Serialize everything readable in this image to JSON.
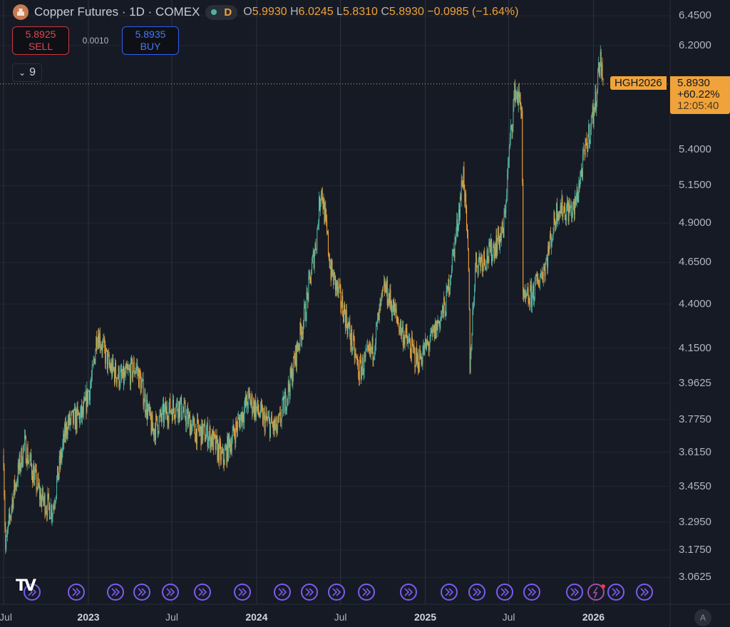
{
  "header": {
    "title": "Copper Futures · 1D · COMEX",
    "interval_badge": "D",
    "ohlc": {
      "o_label": "O",
      "o": "5.9930",
      "h_label": "H",
      "h": "6.0245",
      "l_label": "L",
      "l": "5.8310",
      "c_label": "C",
      "c": "5.8930",
      "change": "−0.0985 (−1.64%)"
    }
  },
  "trade": {
    "sell_price": "5.8925",
    "sell_label": "SELL",
    "spread": "0.0010",
    "buy_price": "5.8935",
    "buy_label": "BUY"
  },
  "indicators_toggle": {
    "icon": "chevron-down-icon",
    "count": "9"
  },
  "price_tag": {
    "symbol": "HGH2026",
    "price": "5.8930",
    "change_pct": "+60.22%",
    "countdown": "12:05:40"
  },
  "auto_scale_label": "A",
  "colors": {
    "up": "#4fb3a0",
    "down": "#f0a33a",
    "background": "#161a25",
    "grid": "#232733",
    "last_price": "#f0a33a",
    "event": "#7b5cf0"
  },
  "chart_data": {
    "type": "candlestick",
    "scale": "log",
    "grid": true,
    "ylim": [
      3.0,
      6.45
    ],
    "y_ticks": [
      "6.4500",
      "6.2000",
      "5.4000",
      "5.1500",
      "4.9000",
      "4.6500",
      "4.4000",
      "4.1500",
      "3.9625",
      "3.7750",
      "3.6150",
      "3.4550",
      "3.2950",
      "3.1750",
      "3.0625"
    ],
    "x_ticks": [
      {
        "date": "2022-07",
        "label": "Jul"
      },
      {
        "date": "2023-01",
        "label": "2023"
      },
      {
        "date": "2023-07",
        "label": "Jul"
      },
      {
        "date": "2024-01",
        "label": "2024"
      },
      {
        "date": "2024-07",
        "label": "Jul"
      },
      {
        "date": "2025-01",
        "label": "2025"
      },
      {
        "date": "2025-07",
        "label": "Jul"
      },
      {
        "date": "2026-01",
        "label": "2026"
      }
    ],
    "last_price": 5.893,
    "approx_closes": [
      [
        "2022-07-01",
        3.6
      ],
      [
        "2022-07-05",
        3.17
      ],
      [
        "2022-07-20",
        3.4
      ],
      [
        "2022-08-15",
        3.65
      ],
      [
        "2022-09-20",
        3.4
      ],
      [
        "2022-10-15",
        3.35
      ],
      [
        "2022-11-15",
        3.75
      ],
      [
        "2022-12-20",
        3.8
      ],
      [
        "2023-01-10",
        4.0
      ],
      [
        "2023-01-20",
        4.25
      ],
      [
        "2023-02-15",
        4.05
      ],
      [
        "2023-03-15",
        3.98
      ],
      [
        "2023-04-15",
        4.05
      ],
      [
        "2023-05-20",
        3.72
      ],
      [
        "2023-06-20",
        3.82
      ],
      [
        "2023-07-15",
        3.85
      ],
      [
        "2023-08-20",
        3.72
      ],
      [
        "2023-09-20",
        3.7
      ],
      [
        "2023-10-20",
        3.58
      ],
      [
        "2023-11-15",
        3.72
      ],
      [
        "2023-12-15",
        3.88
      ],
      [
        "2024-01-15",
        3.78
      ],
      [
        "2024-02-15",
        3.72
      ],
      [
        "2024-03-15",
        3.98
      ],
      [
        "2024-04-15",
        4.35
      ],
      [
        "2024-05-10",
        4.8
      ],
      [
        "2024-05-20",
        5.15
      ],
      [
        "2024-06-10",
        4.6
      ],
      [
        "2024-07-10",
        4.35
      ],
      [
        "2024-08-10",
        4.02
      ],
      [
        "2024-09-10",
        4.15
      ],
      [
        "2024-10-05",
        4.5
      ],
      [
        "2024-11-10",
        4.25
      ],
      [
        "2024-12-15",
        4.08
      ],
      [
        "2025-01-15",
        4.2
      ],
      [
        "2025-02-15",
        4.4
      ],
      [
        "2025-03-10",
        4.85
      ],
      [
        "2025-03-25",
        5.25
      ],
      [
        "2025-04-05",
        4.6
      ],
      [
        "2025-04-08",
        4.05
      ],
      [
        "2025-04-20",
        4.65
      ],
      [
        "2025-05-20",
        4.7
      ],
      [
        "2025-06-20",
        4.85
      ],
      [
        "2025-07-05",
        5.5
      ],
      [
        "2025-07-15",
        5.85
      ],
      [
        "2025-07-30",
        5.7
      ],
      [
        "2025-08-01",
        4.4
      ],
      [
        "2025-08-20",
        4.45
      ],
      [
        "2025-09-20",
        4.65
      ],
      [
        "2025-10-15",
        5.0
      ],
      [
        "2025-11-20",
        4.98
      ],
      [
        "2025-12-15",
        5.4
      ],
      [
        "2026-01-05",
        5.75
      ],
      [
        "2026-01-15",
        6.1
      ],
      [
        "2026-01-22",
        5.893
      ]
    ]
  }
}
